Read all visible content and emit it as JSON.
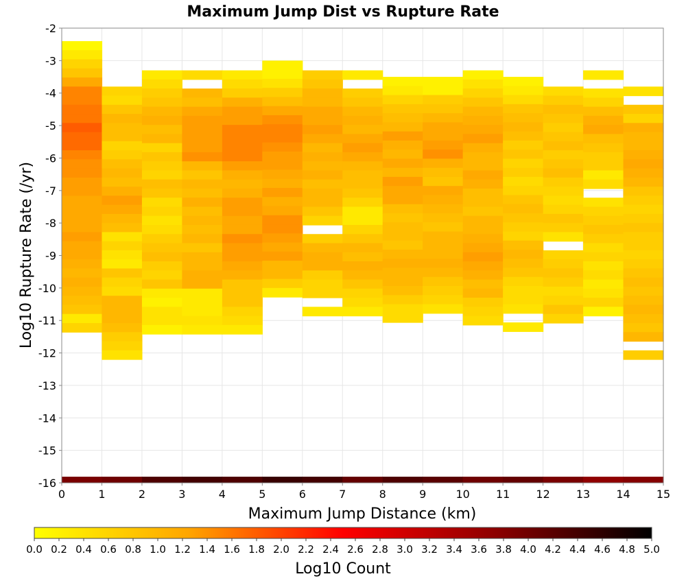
{
  "chart_data": {
    "type": "heatmap",
    "title": "Maximum Jump Dist vs Rupture Rate",
    "xlabel": "Maximum Jump Distance (km)",
    "ylabel": "Log10 Rupture Rate (/yr)",
    "xlim": [
      0,
      15
    ],
    "ylim": [
      -16,
      -2
    ],
    "x_ticks": [
      "0",
      "1",
      "2",
      "3",
      "4",
      "5",
      "6",
      "7",
      "8",
      "9",
      "10",
      "11",
      "12",
      "13",
      "14",
      "15"
    ],
    "y_ticks": [
      "-2",
      "-3",
      "-4",
      "-5",
      "-6",
      "-7",
      "-8",
      "-9",
      "-10",
      "-11",
      "-12",
      "-13",
      "-14",
      "-15",
      "-16"
    ],
    "x_bin_width": 1,
    "y_bin_width": 0.28,
    "y_bin_start": -16,
    "grid": true,
    "colorbar": {
      "label": "Log10 Count",
      "min": 0.0,
      "max": 5.0,
      "ticks": [
        "0.0",
        "0.2",
        "0.4",
        "0.6",
        "0.8",
        "1.0",
        "1.2",
        "1.4",
        "1.6",
        "1.8",
        "2.0",
        "2.2",
        "2.4",
        "2.6",
        "2.8",
        "3.0",
        "3.2",
        "3.4",
        "3.6",
        "3.8",
        "4.0",
        "4.2",
        "4.4",
        "4.6",
        "4.8",
        "5.0"
      ],
      "colors": [
        "#ffff00",
        "#ffa500",
        "#ff0000",
        "#8b0000",
        "#000000"
      ],
      "stops": [
        0.0,
        0.25,
        0.5,
        0.75,
        1.0
      ]
    },
    "bottom_row": {
      "y": -16,
      "values": [
        3.9,
        4.0,
        4.3,
        4.4,
        4.3,
        4.5,
        4.4,
        4.1,
        4.3,
        4.2,
        4.0,
        4.1,
        3.9,
        3.7,
        3.8
      ]
    },
    "columns": [
      {
        "x": 0,
        "y_top": -2.4,
        "values": [
          0.1,
          0.3,
          0.6,
          0.8,
          1.2,
          1.5,
          1.5,
          1.6,
          1.6,
          1.8,
          1.7,
          1.7,
          1.5,
          1.4,
          1.4,
          1.3,
          1.3,
          1.2,
          1.2,
          1.2,
          1.2,
          1.3,
          1.2,
          1.2,
          1.1,
          1.0,
          1.1,
          1.0,
          0.9,
          0.8,
          0.3,
          0.6
        ]
      },
      {
        "x": 1,
        "y_top": -3.8,
        "values": [
          0.6,
          0.5,
          0.8,
          1.0,
          0.9,
          0.9,
          0.6,
          0.7,
          0.9,
          1.0,
          0.9,
          1.1,
          1.3,
          1.2,
          1.0,
          0.9,
          0.4,
          0.6,
          0.4,
          0.3,
          0.8,
          0.6,
          0.5,
          1.0,
          1.0,
          1.0,
          0.9,
          0.7,
          0.6,
          0.4
        ]
      },
      {
        "x": 2,
        "y_top": -3.3,
        "values": [
          0.3,
          0.5,
          0.7,
          0.8,
          1.0,
          1.1,
          0.9,
          1.0,
          0.6,
          0.8,
          0.7,
          0.6,
          0.9,
          0.8,
          0.5,
          0.6,
          0.4,
          0.5,
          0.7,
          0.8,
          0.9,
          0.7,
          0.6,
          0.8,
          0.3,
          0.2,
          0.4,
          0.4,
          0.2
        ]
      },
      {
        "x": 3,
        "y_top": -3.3,
        "values": [
          0.5,
          null,
          1.0,
          0.9,
          1.2,
          1.3,
          1.3,
          1.3,
          1.3,
          1.4,
          1.0,
          0.8,
          1.0,
          0.9,
          1.1,
          0.9,
          1.0,
          0.9,
          1.0,
          0.8,
          1.0,
          1.0,
          1.1,
          1.1,
          0.3,
          0.3,
          0.3,
          0.4,
          0.3
        ]
      },
      {
        "x": 4,
        "y_top": -3.3,
        "values": [
          0.3,
          0.5,
          0.7,
          1.1,
          1.3,
          1.3,
          1.5,
          1.5,
          1.5,
          1.5,
          1.3,
          1.1,
          1.0,
          1.1,
          1.3,
          1.3,
          1.2,
          1.2,
          1.4,
          1.3,
          1.3,
          1.2,
          1.1,
          0.8,
          0.8,
          0.8,
          0.6,
          0.5,
          0.3
        ]
      },
      {
        "x": 5,
        "y_top": -3.0,
        "values": [
          0.2,
          0.2,
          0.4,
          0.7,
          0.9,
          1.2,
          1.4,
          1.5,
          1.5,
          1.4,
          1.3,
          1.3,
          1.2,
          1.1,
          1.3,
          1.1,
          1.2,
          1.4,
          1.4,
          1.3,
          1.2,
          1.3,
          1.0,
          1.0,
          0.7,
          0.3
        ]
      },
      {
        "x": 6,
        "y_top": -3.3,
        "values": [
          0.7,
          0.8,
          1.0,
          1.0,
          1.2,
          1.2,
          1.3,
          1.2,
          1.0,
          1.1,
          1.0,
          1.1,
          0.9,
          1.0,
          1.0,
          0.8,
          0.6,
          null,
          0.7,
          1.0,
          1.1,
          1.1,
          0.7,
          0.6,
          0.6,
          null,
          0.3
        ]
      },
      {
        "x": 7,
        "y_top": -3.3,
        "values": [
          0.3,
          null,
          0.7,
          0.8,
          1.0,
          1.1,
          1.0,
          1.2,
          1.3,
          1.2,
          1.0,
          0.9,
          0.9,
          0.8,
          0.6,
          0.3,
          0.3,
          0.6,
          0.8,
          1.0,
          0.9,
          1.1,
          1.0,
          0.8,
          0.6,
          0.5,
          0.3
        ]
      },
      {
        "x": 8,
        "y_top": -3.5,
        "values": [
          0.2,
          0.3,
          0.6,
          0.8,
          0.9,
          1.0,
          1.3,
          1.1,
          1.0,
          1.2,
          1.0,
          1.3,
          1.2,
          1.2,
          0.9,
          0.8,
          0.9,
          0.9,
          0.8,
          1.0,
          1.1,
          1.0,
          1.0,
          0.9,
          0.7,
          0.5,
          0.5
        ]
      },
      {
        "x": 9,
        "y_top": -3.5,
        "values": [
          0.2,
          0.2,
          0.7,
          0.8,
          1.0,
          1.2,
          1.2,
          1.3,
          1.4,
          1.1,
          0.9,
          0.8,
          1.2,
          1.1,
          1.0,
          0.9,
          0.8,
          1.0,
          1.0,
          1.0,
          1.1,
          1.0,
          0.8,
          0.7,
          0.6,
          0.4
        ]
      },
      {
        "x": 10,
        "y_top": -3.3,
        "values": [
          0.2,
          0.4,
          0.6,
          0.8,
          1.0,
          1.1,
          1.2,
          1.3,
          1.1,
          1.0,
          1.0,
          1.2,
          1.1,
          0.9,
          0.9,
          0.8,
          1.0,
          1.0,
          1.1,
          1.2,
          1.3,
          1.2,
          1.1,
          0.9,
          1.0,
          0.7,
          0.6,
          0.5
        ]
      },
      {
        "x": 11,
        "y_top": -3.5,
        "values": [
          0.2,
          0.3,
          0.5,
          0.8,
          0.9,
          1.0,
          0.9,
          0.7,
          0.8,
          0.6,
          0.7,
          0.5,
          0.6,
          0.8,
          0.9,
          0.8,
          0.7,
          0.6,
          0.9,
          1.0,
          0.9,
          0.8,
          0.6,
          0.5,
          0.5,
          0.4,
          null,
          0.3
        ]
      },
      {
        "x": 12,
        "y_top": -3.8,
        "values": [
          0.5,
          0.7,
          0.9,
          0.8,
          0.7,
          0.8,
          0.9,
          0.7,
          0.8,
          0.9,
          0.7,
          0.6,
          0.5,
          0.6,
          0.8,
          0.7,
          0.4,
          null,
          0.6,
          0.7,
          0.8,
          0.7,
          0.5,
          0.6,
          0.8,
          0.6
        ]
      },
      {
        "x": 13,
        "y_top": -3.3,
        "values": [
          0.3,
          null,
          0.4,
          0.6,
          0.9,
          1.1,
          1.2,
          0.9,
          0.8,
          0.7,
          0.7,
          0.3,
          0.5,
          null,
          0.4,
          0.6,
          0.7,
          0.8,
          0.7,
          0.5,
          0.6,
          0.4,
          0.5,
          0.3,
          0.4,
          0.6,
          0.2
        ]
      },
      {
        "x": 14,
        "y_top": -3.8,
        "values": [
          0.4,
          null,
          0.8,
          0.6,
          1.1,
          1.0,
          1.0,
          1.1,
          1.2,
          1.1,
          1.0,
          0.8,
          0.7,
          0.6,
          0.7,
          0.8,
          0.7,
          0.7,
          0.6,
          0.7,
          0.8,
          0.9,
          0.8,
          0.9,
          1.0,
          0.9,
          0.8,
          1.0,
          null,
          0.7
        ]
      }
    ]
  }
}
